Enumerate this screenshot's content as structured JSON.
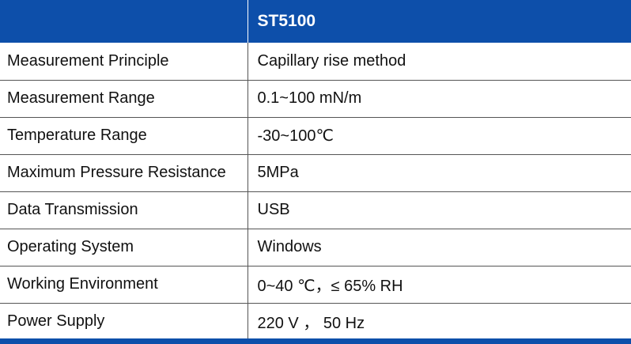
{
  "table": {
    "header": {
      "col1": "",
      "col2": "ST5100"
    },
    "rows": [
      {
        "label": "Measurement Principle",
        "value": "Capillary rise method"
      },
      {
        "label": "Measurement Range",
        "value": "0.1~100 mN/m"
      },
      {
        "label": "Temperature Range",
        "value": "-30~100℃"
      },
      {
        "label": "Maximum Pressure Resistance",
        "value": "5MPa"
      },
      {
        "label": "Data Transmission",
        "value": "USB"
      },
      {
        "label": "Operating System",
        "value": "Windows"
      },
      {
        "label": "Working Environment",
        "value": "0~40 ℃，≤ 65% RH"
      },
      {
        "label": "Power Supply",
        "value": "220 V ， 50 Hz"
      }
    ]
  },
  "colors": {
    "header_background": "#0d4faa",
    "header_text": "#ffffff",
    "border": "#555555"
  }
}
